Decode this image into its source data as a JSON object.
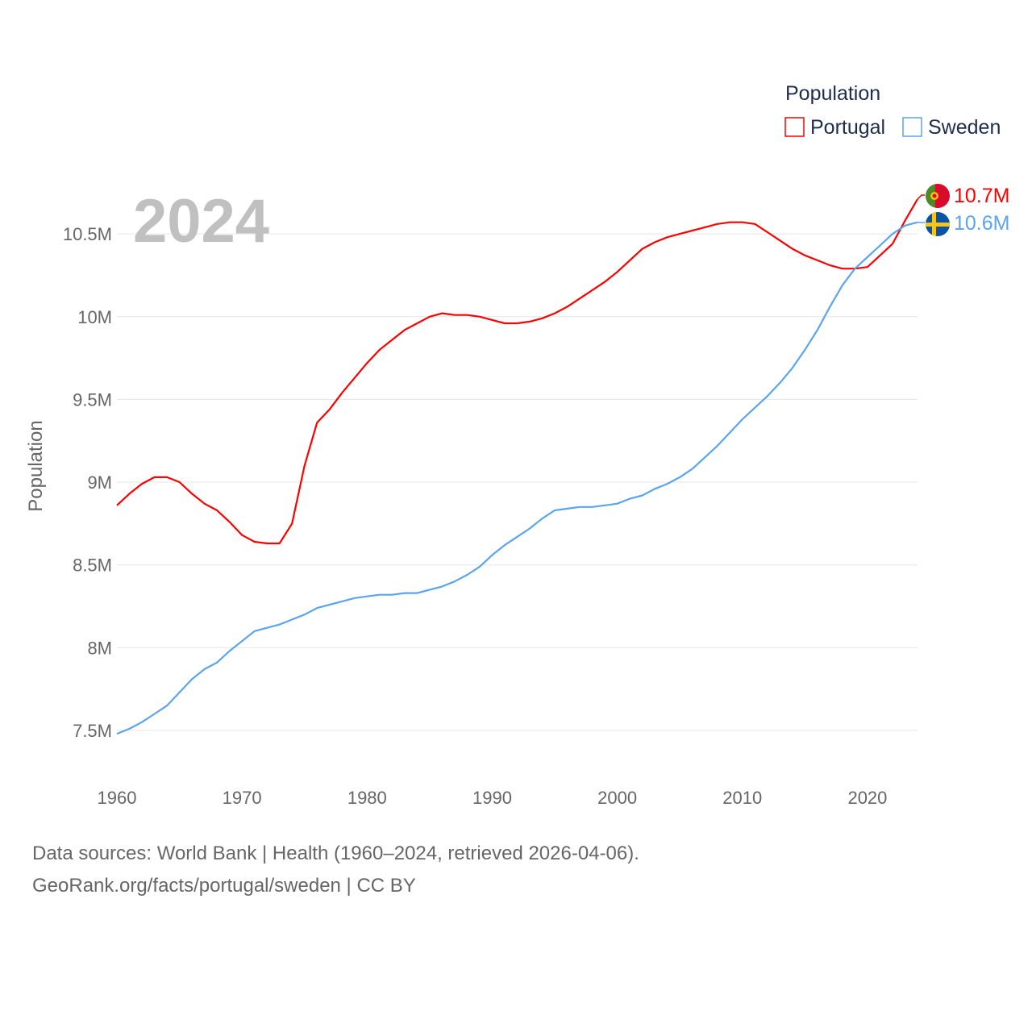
{
  "chart_data": {
    "type": "line",
    "title": "",
    "ylabel": "Population",
    "xlabel": "",
    "year_label": "2024",
    "legend": {
      "title": "Population",
      "position": "top-right"
    },
    "xlim": [
      1960,
      2024
    ],
    "ylim": [
      7.3,
      10.85
    ],
    "x_ticks": [
      1960,
      1970,
      1980,
      1990,
      2000,
      2010,
      2020
    ],
    "y_ticks": [
      {
        "v": 7.5,
        "label": "7.5M"
      },
      {
        "v": 8,
        "label": "8M"
      },
      {
        "v": 8.5,
        "label": "8.5M"
      },
      {
        "v": 9,
        "label": "9M"
      },
      {
        "v": 9.5,
        "label": "9.5M"
      },
      {
        "v": 10,
        "label": "10M"
      },
      {
        "v": 10.5,
        "label": "10.5M"
      }
    ],
    "unit": "millions",
    "x_start": 1960,
    "series": [
      {
        "name": "Portugal",
        "color": "#ff0000",
        "end_label": "10.7M",
        "values": [
          8.86,
          8.93,
          8.99,
          9.03,
          9.03,
          9.0,
          8.93,
          8.87,
          8.83,
          8.76,
          8.68,
          8.64,
          8.63,
          8.63,
          8.75,
          9.1,
          9.36,
          9.44,
          9.54,
          9.63,
          9.72,
          9.8,
          9.86,
          9.92,
          9.96,
          10.0,
          10.02,
          10.01,
          10.01,
          10.0,
          9.98,
          9.96,
          9.96,
          9.97,
          9.99,
          10.02,
          10.06,
          10.11,
          10.16,
          10.21,
          10.27,
          10.34,
          10.41,
          10.45,
          10.48,
          10.5,
          10.52,
          10.54,
          10.56,
          10.57,
          10.57,
          10.56,
          10.51,
          10.46,
          10.41,
          10.37,
          10.34,
          10.31,
          10.29,
          10.29,
          10.3,
          10.37,
          10.44,
          10.58,
          10.71
        ]
      },
      {
        "name": "Sweden",
        "color": "#5ba4ef",
        "end_label": "10.6M",
        "values": [
          7.48,
          7.51,
          7.55,
          7.6,
          7.65,
          7.73,
          7.81,
          7.87,
          7.91,
          7.98,
          8.04,
          8.1,
          8.12,
          8.14,
          8.17,
          8.2,
          8.24,
          8.26,
          8.28,
          8.3,
          8.31,
          8.32,
          8.32,
          8.33,
          8.33,
          8.35,
          8.37,
          8.4,
          8.44,
          8.49,
          8.56,
          8.62,
          8.67,
          8.72,
          8.78,
          8.83,
          8.84,
          8.85,
          8.85,
          8.86,
          8.87,
          8.9,
          8.92,
          8.96,
          8.99,
          9.03,
          9.08,
          9.15,
          9.22,
          9.3,
          9.38,
          9.45,
          9.52,
          9.6,
          9.69,
          9.8,
          9.92,
          10.06,
          10.19,
          10.29,
          10.36,
          10.43,
          10.5,
          10.55,
          10.57
        ]
      }
    ]
  },
  "footer": {
    "line1": "Data sources: World Bank | Health (1960–2024, retrieved 2026-04-06).",
    "line2": "GeoRank.org/facts/portugal/sweden | CC BY"
  }
}
